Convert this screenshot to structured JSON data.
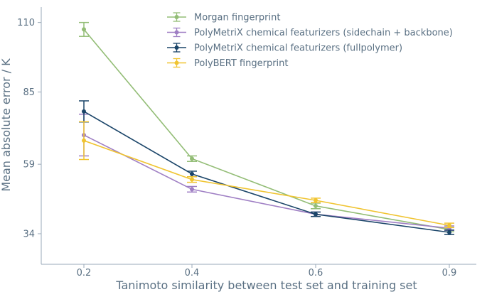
{
  "chart_data": {
    "type": "line",
    "xlabel": "Tanimoto similarity between test set and training set",
    "ylabel": "Mean absolute error / K",
    "categories": [
      "0.2",
      "0.4",
      "0.6",
      "0.9"
    ],
    "yticks": [
      "110",
      "85",
      "59",
      "34"
    ],
    "ytick_values": [
      110,
      85,
      59,
      34
    ],
    "ylim": [
      23,
      114
    ],
    "grid": false,
    "legend_position": "top",
    "series": [
      {
        "name": "Morgan fingerprint",
        "color": "#93bd76",
        "values": [
          107.5,
          61.0,
          44.0,
          35.5
        ],
        "errors": [
          2.5,
          1.0,
          1.0,
          0.8
        ]
      },
      {
        "name": "PolyMetriX chemical featurizers (sidechain + backbone)",
        "color": "#9f7fc4",
        "values": [
          69.5,
          50.0,
          41.0,
          36.0
        ],
        "errors": [
          7.5,
          1.0,
          0.8,
          0.8
        ]
      },
      {
        "name": "PolyMetriX chemical featurizers (fullpolymer)",
        "color": "#1b4569",
        "values": [
          78.0,
          55.5,
          41.0,
          34.5
        ],
        "errors": [
          3.8,
          1.0,
          0.8,
          0.8
        ]
      },
      {
        "name": "PolyBERT fingerprint",
        "color": "#f0c431",
        "values": [
          67.5,
          53.5,
          46.0,
          37.0
        ],
        "errors": [
          6.8,
          1.0,
          0.8,
          0.8
        ]
      }
    ]
  }
}
